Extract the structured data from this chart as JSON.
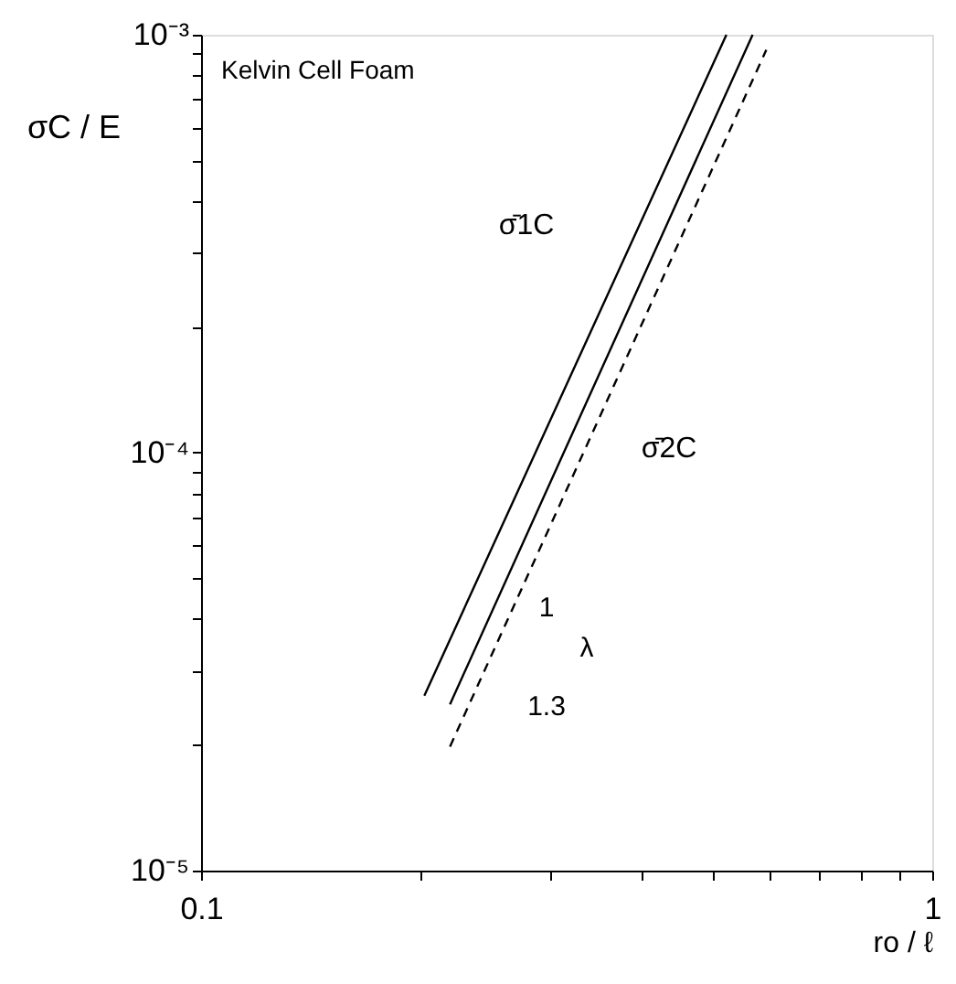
{
  "chart_data": {
    "type": "line",
    "log": "xy",
    "grid": false,
    "marker": "none",
    "xlabel": "ro / ℓ",
    "ylabel": "σC / E",
    "xlim": [
      0.1,
      1
    ],
    "ylim": [
      1e-05,
      0.001
    ],
    "xticks": [
      0.1,
      {
        "value": 0.2,
        "label": null
      },
      {
        "value": 0.3,
        "label": null
      },
      {
        "value": 0.4,
        "label": null
      },
      {
        "value": 0.5,
        "label": null
      },
      {
        "value": 0.6,
        "label": null
      },
      {
        "value": 0.7,
        "label": null
      },
      {
        "value": 0.8,
        "label": null
      },
      {
        "value": 0.9,
        "label": null
      },
      1
    ],
    "yticks": [
      {
        "value": 1e-05,
        "label": "10⁻⁵"
      },
      {
        "value": 2e-05,
        "label": null
      },
      {
        "value": 3e-05,
        "label": null
      },
      {
        "value": 4e-05,
        "label": null
      },
      {
        "value": 5e-05,
        "label": null
      },
      {
        "value": 6e-05,
        "label": null
      },
      {
        "value": 7e-05,
        "label": null
      },
      {
        "value": 8e-05,
        "label": null
      },
      {
        "value": 9e-05,
        "label": null
      },
      {
        "value": 0.0001,
        "label": "10⁻⁴"
      },
      {
        "value": 0.0002,
        "label": null
      },
      {
        "value": 0.0003,
        "label": null
      },
      {
        "value": 0.0004,
        "label": null
      },
      {
        "value": 0.0005,
        "label": null
      },
      {
        "value": 0.0006,
        "label": null
      },
      {
        "value": 0.0007,
        "label": null
      },
      {
        "value": 0.0008,
        "label": null
      },
      {
        "value": 0.0009,
        "label": null
      },
      {
        "value": 0.001,
        "label": "10⁻³"
      }
    ],
    "series": [
      {
        "color": "#000000",
        "line_style": "solid",
        "x": [
          0.202,
          0.523
        ],
        "values": [
          2.62e-05,
          0.001
        ]
      },
      {
        "color": "#000000",
        "line_style": "solid",
        "x": [
          0.219,
          0.568
        ],
        "values": [
          2.5e-05,
          0.001
        ]
      },
      {
        "color": "#000000",
        "line_style": "dashed",
        "x": [
          0.219,
          0.593
        ],
        "values": [
          1.98e-05,
          0.00092
        ]
      }
    ],
    "annotations": [
      "Kelvin Cell Foam",
      "σ̄1C",
      "σ̄2C",
      "1",
      "λ",
      "1.3"
    ]
  }
}
